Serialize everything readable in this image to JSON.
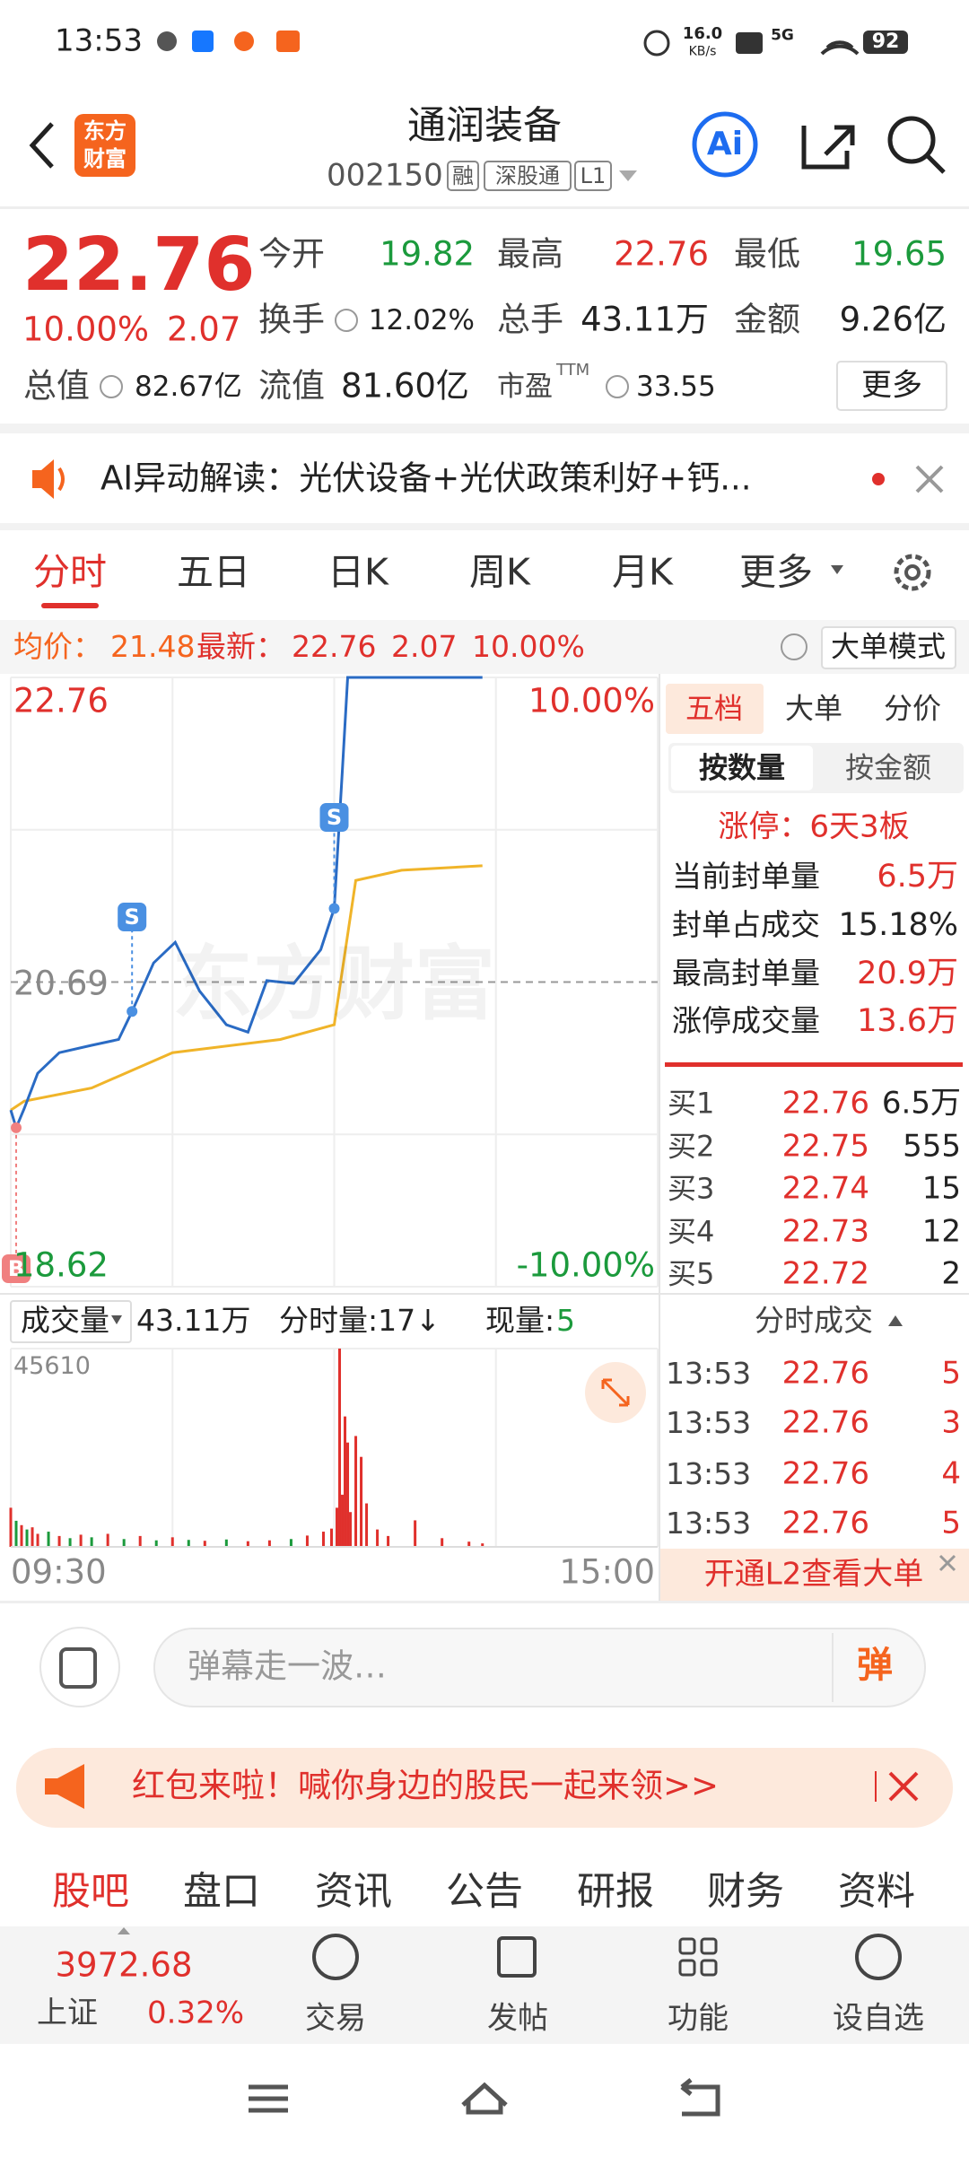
{
  "status": {
    "time": "13:53",
    "speed": "16.0",
    "speed_unit": "KB/s",
    "network": "5G",
    "battery": "92"
  },
  "header": {
    "logo_top": "东方",
    "logo_bottom": "财富",
    "title": "通润装备",
    "code": "002150",
    "tags": [
      "融",
      "深股通",
      "L1"
    ],
    "ai": "Ai"
  },
  "quote": {
    "price": "22.76",
    "pct": "10.00%",
    "change": "2.07",
    "fields": [
      {
        "label": "今开",
        "value": "19.82"
      },
      {
        "label": "最高",
        "value": "22.76"
      },
      {
        "label": "最低",
        "value": "19.65"
      },
      {
        "label": "换手",
        "value": "12.02%"
      },
      {
        "label": "总手",
        "value": "43.11万"
      },
      {
        "label": "金额",
        "value": "9.26亿"
      },
      {
        "label": "总值",
        "value": "82.67亿"
      },
      {
        "label": "流值",
        "value": "81.60亿"
      },
      {
        "label": "市盈",
        "sup": "TTM",
        "value": "33.55"
      }
    ],
    "more": "更多"
  },
  "ai_banner": "AI异动解读：光伏设备+光伏政策利好+钙...",
  "tabs": [
    "分时",
    "五日",
    "日K",
    "周K",
    "月K",
    "更多"
  ],
  "info": {
    "avg_label": "均价：",
    "avg": "21.48",
    "latest_label": "最新：",
    "latest": "22.76",
    "change": "2.07",
    "pct": "10.00%",
    "mode": "大单模式"
  },
  "chart": {
    "price_top": "22.76",
    "price_mid": "20.69",
    "price_bottom": "18.62",
    "pct_top": "10.00%",
    "pct_bottom": "-10.00%",
    "watermark": "东方财富",
    "ylim": [
      18.62,
      22.76
    ],
    "xlim": [
      0,
      240
    ],
    "mid": 20.69,
    "price": {
      "minutes": [
        0,
        2,
        5,
        10,
        18,
        30,
        40,
        45,
        53,
        61,
        70,
        80,
        88,
        95,
        105,
        115,
        120,
        123,
        125,
        175
      ],
      "values": [
        19.82,
        19.7,
        19.83,
        20.07,
        20.21,
        20.26,
        20.3,
        20.49,
        20.82,
        20.96,
        20.63,
        20.4,
        20.35,
        20.7,
        20.68,
        20.91,
        21.19,
        22.12,
        22.76,
        22.76
      ]
    },
    "avg": {
      "minutes": [
        0,
        5,
        30,
        60,
        100,
        120,
        128,
        145,
        175
      ],
      "values": [
        19.82,
        19.88,
        19.97,
        20.21,
        20.3,
        20.4,
        21.38,
        21.45,
        21.48
      ]
    },
    "markers": [
      "B",
      "S",
      "S"
    ],
    "volume_label": "成交量",
    "volume_total": "43.11万",
    "tick_volume": "分时量:17↓",
    "current_label": "现量:",
    "current": "5",
    "volume_max_label": "45610",
    "volume": {
      "ylim": [
        0,
        45610
      ],
      "minutes": [
        0,
        2,
        4,
        6,
        8,
        10,
        14,
        18,
        22,
        26,
        30,
        36,
        42,
        48,
        54,
        60,
        66,
        72,
        80,
        88,
        96,
        104,
        110,
        116,
        119,
        121,
        122,
        123,
        124,
        125,
        126,
        128,
        130,
        132,
        136,
        140,
        150,
        160,
        170,
        175
      ],
      "values": [
        9000,
        6000,
        5000,
        4000,
        4500,
        3000,
        3500,
        2500,
        2000,
        2800,
        2200,
        3000,
        1800,
        2500,
        1500,
        2200,
        1600,
        1400,
        1700,
        1300,
        1500,
        1800,
        2600,
        3500,
        4200,
        9000,
        45610,
        12000,
        30000,
        24000,
        8000,
        25500,
        20700,
        10000,
        4000,
        2500,
        6100,
        2000,
        1200,
        800
      ],
      "up": [
        true,
        false,
        true,
        false,
        true,
        true,
        false,
        true,
        false,
        true,
        false,
        true,
        false,
        true,
        false,
        true,
        false,
        true,
        false,
        true,
        true,
        false,
        true,
        true,
        true,
        true,
        true,
        true,
        true,
        true,
        true,
        true,
        true,
        true,
        true,
        true,
        true,
        true,
        true,
        true
      ]
    },
    "time_start": "09:30",
    "time_end": "15:00"
  },
  "panel": {
    "tabs": [
      "五档",
      "大单",
      "分价"
    ],
    "toggle": [
      "按数量",
      "按金额"
    ],
    "limit": "涨停：6天3板",
    "stats": [
      [
        "当前封单量",
        "6.5万"
      ],
      [
        "封单占成交",
        "15.18%"
      ],
      [
        "最高封单量",
        "20.9万"
      ],
      [
        "涨停成交量",
        "13.6万"
      ]
    ],
    "book": [
      [
        "买1",
        "22.76",
        "6.5万"
      ],
      [
        "买2",
        "22.75",
        "555"
      ],
      [
        "买3",
        "22.74",
        "15"
      ],
      [
        "买4",
        "22.73",
        "12"
      ],
      [
        "买5",
        "22.72",
        "2"
      ]
    ],
    "trades_title": "分时成交",
    "trades": [
      [
        "13:53",
        "22.76",
        "5"
      ],
      [
        "13:53",
        "22.76",
        "3"
      ],
      [
        "13:53",
        "22.76",
        "4"
      ],
      [
        "13:53",
        "22.76",
        "5"
      ]
    ],
    "l2": "开通L2查看大单"
  },
  "comment": {
    "placeholder": "弹幕走一波…",
    "button": "弹"
  },
  "red_packet": "红包来啦！喊你身边的股民一起来领>>",
  "bottom_tabs": [
    "股吧",
    "盘口",
    "资讯",
    "公告",
    "研报",
    "财务",
    "资料"
  ],
  "nav": {
    "index_value": "3972.68",
    "index_name": "上证",
    "index_pct": "0.32%",
    "items": [
      "交易",
      "发帖",
      "功能",
      "设自选"
    ]
  }
}
